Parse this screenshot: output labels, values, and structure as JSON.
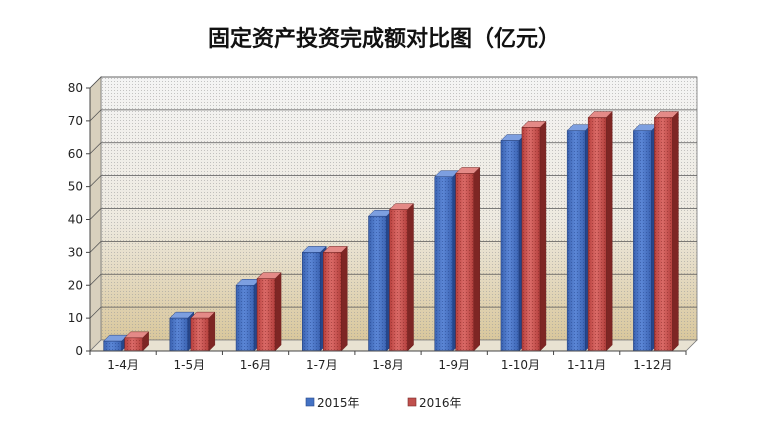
{
  "chart_data": {
    "type": "bar",
    "title": "固定资产投资完成额对比图（亿元）",
    "categories": [
      "1-4月",
      "1-5月",
      "1-6月",
      "1-7月",
      "1-8月",
      "1-9月",
      "1-10月",
      "1-11月",
      "1-12月"
    ],
    "series": [
      {
        "name": "2015年",
        "color": "#4472c4",
        "values": [
          3,
          10,
          20,
          30,
          41,
          53,
          64,
          67,
          67
        ]
      },
      {
        "name": "2016年",
        "color": "#c0504d",
        "values": [
          4,
          10,
          22,
          30,
          43,
          54,
          68,
          71,
          71
        ]
      }
    ],
    "yticks": [
      0,
      10,
      20,
      30,
      40,
      50,
      60,
      70,
      80
    ],
    "ylim": [
      0,
      80
    ],
    "grid": true,
    "legend_position": "bottom",
    "style": "3d-clustered-column"
  }
}
